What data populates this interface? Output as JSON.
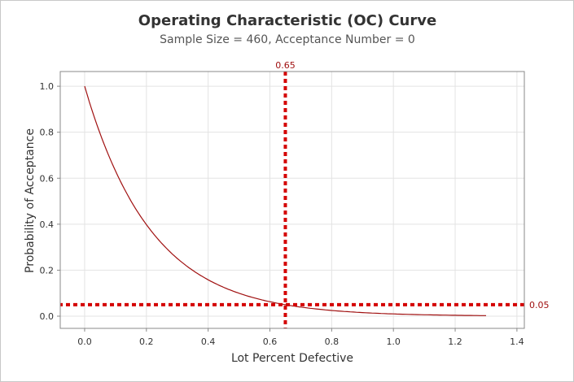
{
  "chart_data": {
    "type": "line",
    "title": "Operating Characteristic (OC) Curve",
    "subtitle": "Sample Size = 460, Acceptance Number = 0",
    "xlabel": "Lot Percent Defective",
    "ylabel": "Probability of Acceptance",
    "xlim": [
      -0.079,
      1.424
    ],
    "ylim": [
      -0.053,
      1.064
    ],
    "xticks": [
      "0.0",
      "0.2",
      "0.4",
      "0.6",
      "0.8",
      "1.0",
      "1.2",
      "1.4"
    ],
    "xtick_values": [
      0,
      0.2,
      0.4,
      0.6,
      0.8,
      1.0,
      1.2,
      1.4
    ],
    "yticks": [
      "0.0",
      "0.2",
      "0.4",
      "0.6",
      "0.8",
      "1.0"
    ],
    "ytick_values": [
      0,
      0.2,
      0.4,
      0.6,
      0.8,
      1.0
    ],
    "grid": true,
    "series": [
      {
        "name": "OC curve",
        "color": "#a01010",
        "x": [
          0,
          0.05,
          0.1,
          0.15,
          0.2,
          0.25,
          0.3,
          0.35,
          0.4,
          0.45,
          0.5,
          0.55,
          0.6,
          0.65,
          0.7,
          0.8,
          0.9,
          1.0,
          1.1,
          1.2,
          1.3
        ],
        "y": [
          1,
          0.7945,
          0.6312,
          0.5013,
          0.3982,
          0.3162,
          0.2511,
          0.1993,
          0.1582,
          0.1256,
          0.0997,
          0.0791,
          0.0628,
          0.0498,
          0.0395,
          0.0249,
          0.0156,
          0.0098,
          0.0062,
          0.0039,
          0.0024
        ]
      }
    ],
    "reference_lines": {
      "vertical": {
        "value": 0.65,
        "label": "0.65",
        "color": "#d40000"
      },
      "horizontal": {
        "value": 0.05,
        "label": "0.05",
        "color": "#d40000"
      }
    }
  }
}
